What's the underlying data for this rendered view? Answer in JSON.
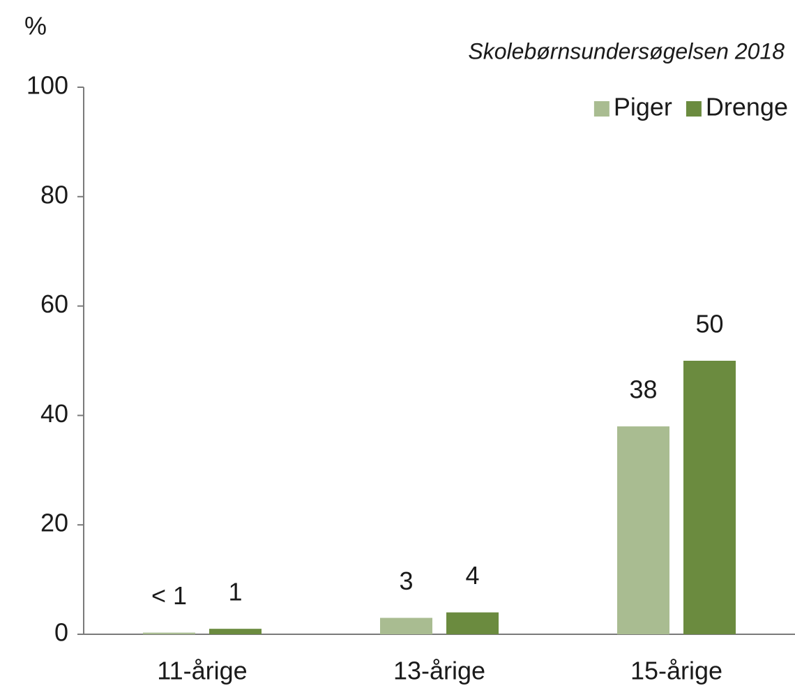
{
  "chart_data": {
    "type": "bar",
    "unit_label": "%",
    "subtitle": "Skolebørnsundersøgelsen 2018",
    "categories": [
      "11-årige",
      "13-årige",
      "15-årige"
    ],
    "series": [
      {
        "name": "Piger",
        "color": "#a9bc91",
        "values": [
          0.3,
          3,
          38
        ],
        "value_labels": [
          "< 1",
          "3",
          "38"
        ]
      },
      {
        "name": "Drenge",
        "color": "#6b8b3f",
        "values": [
          1,
          4,
          50
        ]
      }
    ],
    "ylim": [
      0,
      100
    ],
    "yticks": [
      0,
      20,
      40,
      60,
      80,
      100
    ],
    "legend": "top-right"
  }
}
